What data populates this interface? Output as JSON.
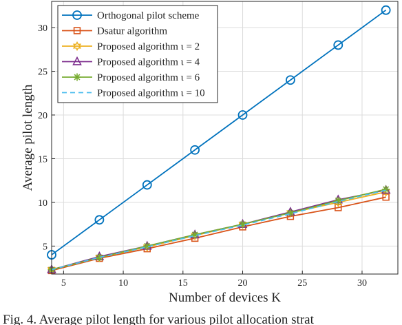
{
  "chart_data": {
    "type": "line",
    "title": "",
    "xlabel": "Number of devices K",
    "ylabel": "Average pilot length",
    "xlim": [
      4,
      33
    ],
    "ylim": [
      1.8,
      33
    ],
    "xticks": [
      5,
      10,
      15,
      20,
      25,
      30
    ],
    "yticks": [
      5,
      10,
      15,
      20,
      25,
      30
    ],
    "grid": true,
    "legend_position": "top-left",
    "x": [
      4,
      8,
      12,
      16,
      20,
      24,
      28,
      32
    ],
    "series": [
      {
        "name": "Orthogonal pilot scheme",
        "values": [
          4,
          8,
          12,
          16,
          20,
          24,
          28,
          32
        ],
        "color": "#0072BD",
        "marker": "circle",
        "dash": "solid"
      },
      {
        "name": "Dsatur algorithm",
        "values": [
          2.2,
          3.6,
          4.7,
          5.9,
          7.2,
          8.4,
          9.4,
          10.6
        ],
        "color": "#D95319",
        "marker": "square",
        "dash": "solid"
      },
      {
        "name": "Proposed algorithm ι = 2",
        "values": [
          2.3,
          3.7,
          4.9,
          6.2,
          7.5,
          8.8,
          10.0,
          11.2
        ],
        "color": "#EDB120",
        "marker": "hexagram",
        "dash": "solid"
      },
      {
        "name": "Proposed algorithm ι = 4",
        "values": [
          2.3,
          3.8,
          5.0,
          6.3,
          7.5,
          8.9,
          10.3,
          11.4
        ],
        "color": "#7E2F8E",
        "marker": "triangle",
        "dash": "solid"
      },
      {
        "name": "Proposed algorithm ι = 6",
        "values": [
          2.3,
          3.7,
          5.0,
          6.3,
          7.5,
          8.8,
          10.2,
          11.5
        ],
        "color": "#77AC30",
        "marker": "asterisk",
        "dash": "solid"
      },
      {
        "name": "Proposed algorithm ι = 10",
        "values": [
          2.3,
          3.7,
          4.9,
          6.2,
          7.4,
          8.7,
          10.1,
          11.4
        ],
        "color": "#4DBEEE",
        "marker": "none",
        "dash": "dashed"
      }
    ]
  },
  "caption": "Fig. 4. Average pilot length for various pilot allocation strat"
}
